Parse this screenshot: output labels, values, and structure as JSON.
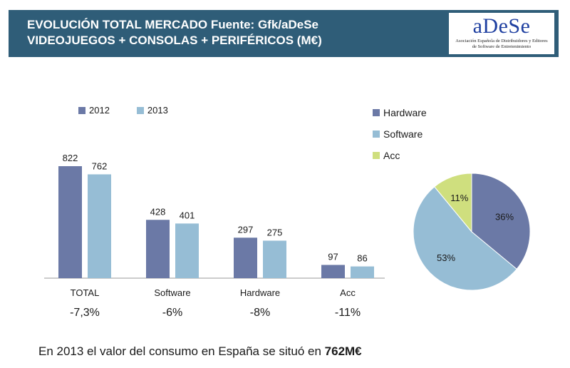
{
  "header": {
    "title_line1": "EVOLUCIÓN TOTAL MERCADO Fuente: Gfk/aDeSe",
    "title_line2": "VIDEOJUEGOS + CONSOLAS + PERIFÉRICOS (M€)",
    "logo_text": "aDeSe",
    "logo_sub_line1": "Asociación Española de Distribuidores y Editores",
    "logo_sub_line2": "de Software de Entretenimiento"
  },
  "footer": {
    "text": "En 2013 el valor del consumo en España se situó en ",
    "highlight": "762M€"
  },
  "chart_data": [
    {
      "type": "bar",
      "categories": [
        "TOTAL",
        "Software",
        "Hardware",
        "Acc"
      ],
      "series": [
        {
          "name": "2012",
          "values": [
            822,
            428,
            297,
            97
          ],
          "color": "#6b79a6"
        },
        {
          "name": "2013",
          "values": [
            762,
            401,
            275,
            86
          ],
          "color": "#96bdd5"
        }
      ],
      "change_labels": [
        "-7,3%",
        "-6%",
        "-8%",
        "-11%"
      ],
      "ylim": [
        0,
        822
      ],
      "grid": false,
      "legend": "top-left"
    },
    {
      "type": "pie",
      "labels": [
        "Hardware",
        "Software",
        "Acc"
      ],
      "values": [
        36,
        53,
        11
      ],
      "value_labels": [
        "36%",
        "53%",
        "11%"
      ],
      "colors": [
        "#6b79a6",
        "#96bdd5",
        "#cfdf7e"
      ],
      "legend": "top-left"
    }
  ]
}
